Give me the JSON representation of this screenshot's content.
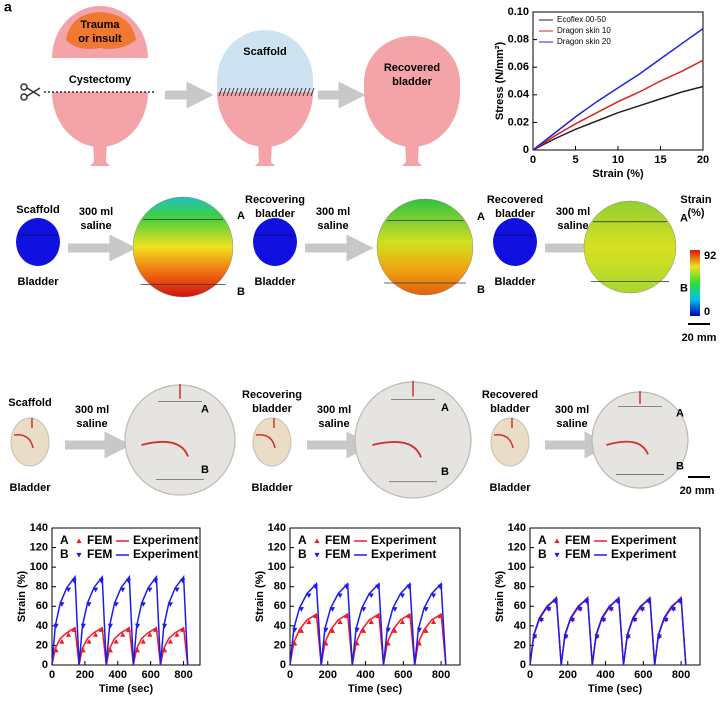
{
  "figure": {
    "panel_label": "a",
    "repair": {
      "injury": [
        "Trauma",
        "or insult"
      ],
      "cut": "Cystectomy",
      "scaffold": "Scaffold",
      "recovered": [
        "Recovered",
        "bladder"
      ]
    },
    "fem": {
      "stages": [
        {
          "top": [
            "Scaffold"
          ],
          "bottom": "Bladder",
          "load": [
            "300 ml",
            "saline"
          ],
          "points": [
            "A",
            "B"
          ]
        },
        {
          "top": [
            "Recovering",
            "bladder"
          ],
          "bottom": "Bladder",
          "load": [
            "300 ml",
            "saline"
          ],
          "points": [
            "A",
            "B"
          ]
        },
        {
          "top": [
            "Recovered",
            "bladder"
          ],
          "bottom": "Bladder",
          "load": [
            "300 ml",
            "saline"
          ],
          "points": [
            "A",
            "B"
          ]
        }
      ],
      "colorbar": {
        "title": [
          "Strain",
          "(%)"
        ],
        "max": 92,
        "min": 0
      },
      "scale": "20 mm"
    },
    "photos": {
      "stages": [
        {
          "top": [
            "Scaffold"
          ],
          "bottom": "Bladder",
          "load": [
            "300 ml",
            "saline"
          ],
          "points": [
            "A",
            "B"
          ]
        },
        {
          "top": [
            "Recovering",
            "bladder"
          ],
          "bottom": "Bladder",
          "load": [
            "300 ml",
            "saline"
          ],
          "points": [
            "A",
            "B"
          ]
        },
        {
          "top": [
            "Recovered",
            "bladder"
          ],
          "bottom": "Bladder",
          "load": [
            "300 ml",
            "saline"
          ],
          "points": [
            "A",
            "B"
          ]
        }
      ],
      "scale": "20 mm"
    }
  },
  "chart_data": [
    {
      "type": "line",
      "x_label": "Strain (%)",
      "y_label": "Stress (N/mm²)",
      "x": [
        0,
        2.5,
        5,
        7.5,
        10,
        12.5,
        15,
        17.5,
        20
      ],
      "xlim": [
        0,
        20
      ],
      "xticks": [
        0,
        5,
        10,
        15,
        20
      ],
      "ylim": [
        0,
        0.1
      ],
      "yticks": [
        0,
        0.02,
        0.04,
        0.06,
        0.08,
        {
          "value": 0.1,
          "label": "0.10"
        }
      ],
      "legend": "upper left",
      "series": [
        {
          "name": "Ecoflex 00-50",
          "color": "#222222",
          "values": [
            0,
            0.008,
            0.015,
            0.021,
            0.027,
            0.032,
            0.037,
            0.042,
            0.046
          ]
        },
        {
          "name": "Dragon skin 10",
          "color": "#e02020",
          "values": [
            0,
            0.01,
            0.019,
            0.027,
            0.035,
            0.042,
            0.05,
            0.057,
            0.065
          ]
        },
        {
          "name": "Dragon skin 20",
          "color": "#2020e0",
          "values": [
            0,
            0.012,
            0.024,
            0.035,
            0.045,
            0.055,
            0.066,
            0.077,
            0.088
          ]
        }
      ]
    },
    {
      "type": "line",
      "x_label": "Time (sec)",
      "y_label": "Strain (%)",
      "x": [
        0,
        20,
        50,
        90,
        140,
        165,
        185,
        215,
        255,
        305,
        330,
        350,
        380,
        420,
        470,
        495,
        515,
        545,
        585,
        635,
        660,
        680,
        710,
        750,
        800,
        825
      ],
      "xlim": [
        0,
        900
      ],
      "xticks": [
        0,
        200,
        400,
        600,
        800
      ],
      "ylim": [
        0,
        140
      ],
      "yticks": [
        0,
        20,
        40,
        60,
        80,
        100,
        120,
        140
      ],
      "series": [
        {
          "name": "FEM",
          "group": "A",
          "color": "#ee1c25",
          "style": "markers",
          "marker": "triangle-up",
          "x": [
            25,
            60,
            100,
            135,
            190,
            225,
            265,
            300,
            355,
            390,
            430,
            465,
            520,
            555,
            595,
            630,
            685,
            720,
            760,
            795
          ],
          "values": [
            15,
            24,
            31,
            36,
            15,
            24,
            31,
            36,
            15,
            24,
            31,
            36,
            15,
            24,
            31,
            36,
            15,
            24,
            31,
            36
          ]
        },
        {
          "name": "Experiment",
          "group": "A",
          "color": "#ee1c25",
          "style": "line",
          "values": [
            0,
            17,
            27,
            33,
            38,
            0,
            17,
            27,
            33,
            38,
            0,
            17,
            27,
            33,
            38,
            0,
            17,
            27,
            33,
            38,
            0,
            17,
            27,
            33,
            38,
            0
          ]
        },
        {
          "name": "FEM",
          "group": "B",
          "color": "#1c1cee",
          "style": "markers",
          "marker": "triangle-down",
          "x": [
            25,
            60,
            100,
            135,
            190,
            225,
            265,
            300,
            355,
            390,
            430,
            465,
            520,
            555,
            595,
            630,
            685,
            720,
            760,
            795
          ],
          "values": [
            40,
            62,
            77,
            86,
            40,
            62,
            77,
            86,
            40,
            62,
            77,
            86,
            40,
            62,
            77,
            86,
            40,
            62,
            77,
            86
          ]
        },
        {
          "name": "Experiment",
          "group": "B",
          "color": "#1c1cee",
          "style": "line",
          "values": [
            0,
            40,
            63,
            79,
            90,
            0,
            40,
            63,
            79,
            90,
            0,
            40,
            63,
            79,
            90,
            0,
            40,
            63,
            79,
            90,
            0,
            40,
            63,
            79,
            90,
            0
          ]
        }
      ]
    },
    {
      "type": "line",
      "x_label": "Time (sec)",
      "y_label": "Strain (%)",
      "x": [
        0,
        20,
        50,
        90,
        140,
        165,
        185,
        215,
        255,
        305,
        330,
        350,
        380,
        420,
        470,
        495,
        515,
        545,
        585,
        635,
        660,
        680,
        710,
        750,
        800,
        825
      ],
      "xlim": [
        0,
        900
      ],
      "xticks": [
        0,
        200,
        400,
        600,
        800
      ],
      "ylim": [
        0,
        140
      ],
      "yticks": [
        0,
        20,
        40,
        60,
        80,
        100,
        120,
        140
      ],
      "series": [
        {
          "name": "FEM",
          "group": "A",
          "color": "#ee1c25",
          "style": "markers",
          "marker": "triangle-up",
          "x": [
            25,
            60,
            100,
            135,
            190,
            225,
            265,
            300,
            355,
            390,
            430,
            465,
            520,
            555,
            595,
            630,
            685,
            720,
            760,
            795
          ],
          "values": [
            22,
            35,
            44,
            50,
            22,
            35,
            44,
            50,
            22,
            35,
            44,
            50,
            22,
            35,
            44,
            50,
            22,
            35,
            44,
            50
          ]
        },
        {
          "name": "Experiment",
          "group": "A",
          "color": "#ee1c25",
          "style": "line",
          "values": [
            0,
            23,
            36,
            46,
            52,
            0,
            23,
            36,
            46,
            52,
            0,
            23,
            36,
            46,
            52,
            0,
            23,
            36,
            46,
            52,
            0,
            23,
            36,
            46,
            52,
            0
          ]
        },
        {
          "name": "FEM",
          "group": "B",
          "color": "#1c1cee",
          "style": "markers",
          "marker": "triangle-down",
          "x": [
            25,
            60,
            100,
            135,
            190,
            225,
            265,
            300,
            355,
            390,
            430,
            465,
            520,
            555,
            595,
            630,
            685,
            720,
            760,
            795
          ],
          "values": [
            36,
            57,
            71,
            80,
            36,
            57,
            71,
            80,
            36,
            57,
            71,
            80,
            36,
            57,
            71,
            80,
            36,
            57,
            71,
            80
          ]
        },
        {
          "name": "Experiment",
          "group": "B",
          "color": "#1c1cee",
          "style": "line",
          "values": [
            0,
            37,
            58,
            73,
            83,
            0,
            37,
            58,
            73,
            83,
            0,
            37,
            58,
            73,
            83,
            0,
            37,
            58,
            73,
            83,
            0,
            37,
            58,
            73,
            83,
            0
          ]
        }
      ]
    },
    {
      "type": "line",
      "x_label": "Time (sec)",
      "y_label": "Strain (%)",
      "x": [
        0,
        20,
        50,
        90,
        140,
        165,
        185,
        215,
        255,
        305,
        330,
        350,
        380,
        420,
        470,
        495,
        515,
        545,
        585,
        635,
        660,
        680,
        710,
        750,
        800,
        825
      ],
      "xlim": [
        0,
        900
      ],
      "xticks": [
        0,
        200,
        400,
        600,
        800
      ],
      "ylim": [
        0,
        140
      ],
      "yticks": [
        0,
        20,
        40,
        60,
        80,
        100,
        120,
        140
      ],
      "series": [
        {
          "name": "FEM",
          "group": "A",
          "color": "#ee1c25",
          "style": "markers",
          "marker": "triangle-up",
          "x": [
            25,
            60,
            100,
            135,
            190,
            225,
            265,
            300,
            355,
            390,
            430,
            465,
            520,
            555,
            595,
            630,
            685,
            720,
            760,
            795
          ],
          "values": [
            30,
            47,
            58,
            66,
            30,
            47,
            58,
            66,
            30,
            47,
            58,
            66,
            30,
            47,
            58,
            66,
            30,
            47,
            58,
            66
          ]
        },
        {
          "name": "Experiment",
          "group": "A",
          "color": "#ee1c25",
          "style": "line",
          "values": [
            0,
            30,
            47,
            59,
            69,
            0,
            30,
            47,
            59,
            69,
            0,
            30,
            47,
            59,
            69,
            0,
            30,
            47,
            59,
            69,
            0,
            30,
            47,
            59,
            69,
            0
          ]
        },
        {
          "name": "FEM",
          "group": "B",
          "color": "#1c1cee",
          "style": "markers",
          "marker": "triangle-down",
          "x": [
            25,
            60,
            100,
            135,
            190,
            225,
            265,
            300,
            355,
            390,
            430,
            465,
            520,
            555,
            595,
            630,
            685,
            720,
            760,
            795
          ],
          "values": [
            29,
            46,
            57,
            65,
            29,
            46,
            57,
            65,
            29,
            46,
            57,
            65,
            29,
            46,
            57,
            65,
            29,
            46,
            57,
            65
          ]
        },
        {
          "name": "Experiment",
          "group": "B",
          "color": "#1c1cee",
          "style": "line",
          "values": [
            0,
            31,
            48,
            60,
            68,
            0,
            31,
            48,
            60,
            68,
            0,
            31,
            48,
            60,
            68,
            0,
            31,
            48,
            60,
            68,
            0,
            31,
            48,
            60,
            68,
            0
          ]
        }
      ]
    }
  ]
}
